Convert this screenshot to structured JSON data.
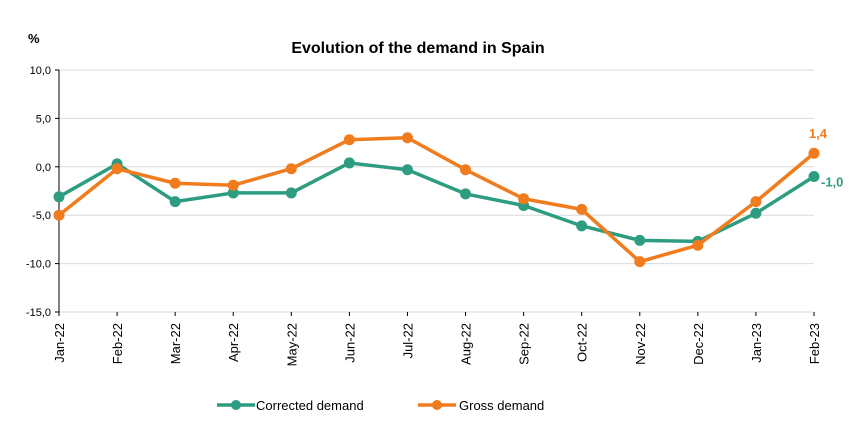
{
  "chart_data": {
    "type": "line",
    "title": "Evolution of the demand in Spain",
    "ylabel": "%",
    "categories": [
      "Jan-22",
      "Feb-22",
      "Mar-22",
      "Apr-22",
      "May-22",
      "Jun-22",
      "Jul-22",
      "Aug-22",
      "Sep-22",
      "Oct-22",
      "Nov-22",
      "Dec-22",
      "Jan-23",
      "Feb-23"
    ],
    "ylim": [
      -15,
      10
    ],
    "yticks": [
      10,
      5,
      0,
      -5,
      -10,
      -15
    ],
    "ytick_labels": [
      "10,0",
      "5,0",
      "0,0",
      "-5,0",
      "-10,0",
      "-15,0"
    ],
    "grid": true,
    "legend_position": "bottom",
    "series": [
      {
        "name": "Corrected demand",
        "color": "#2e9c80",
        "values": [
          -3.1,
          0.3,
          -3.6,
          -2.7,
          -2.7,
          0.4,
          -0.3,
          -2.8,
          -4.0,
          -6.1,
          -7.6,
          -7.7,
          -4.8,
          -1.0
        ],
        "end_label": "-1,0"
      },
      {
        "name": "Gross demand",
        "color": "#f07c1e",
        "values": [
          -5.0,
          -0.2,
          -1.7,
          -1.9,
          -0.2,
          2.8,
          3.0,
          -0.3,
          -3.3,
          -4.4,
          -9.8,
          -8.1,
          -3.6,
          1.4
        ],
        "end_label": "1,4"
      }
    ]
  }
}
